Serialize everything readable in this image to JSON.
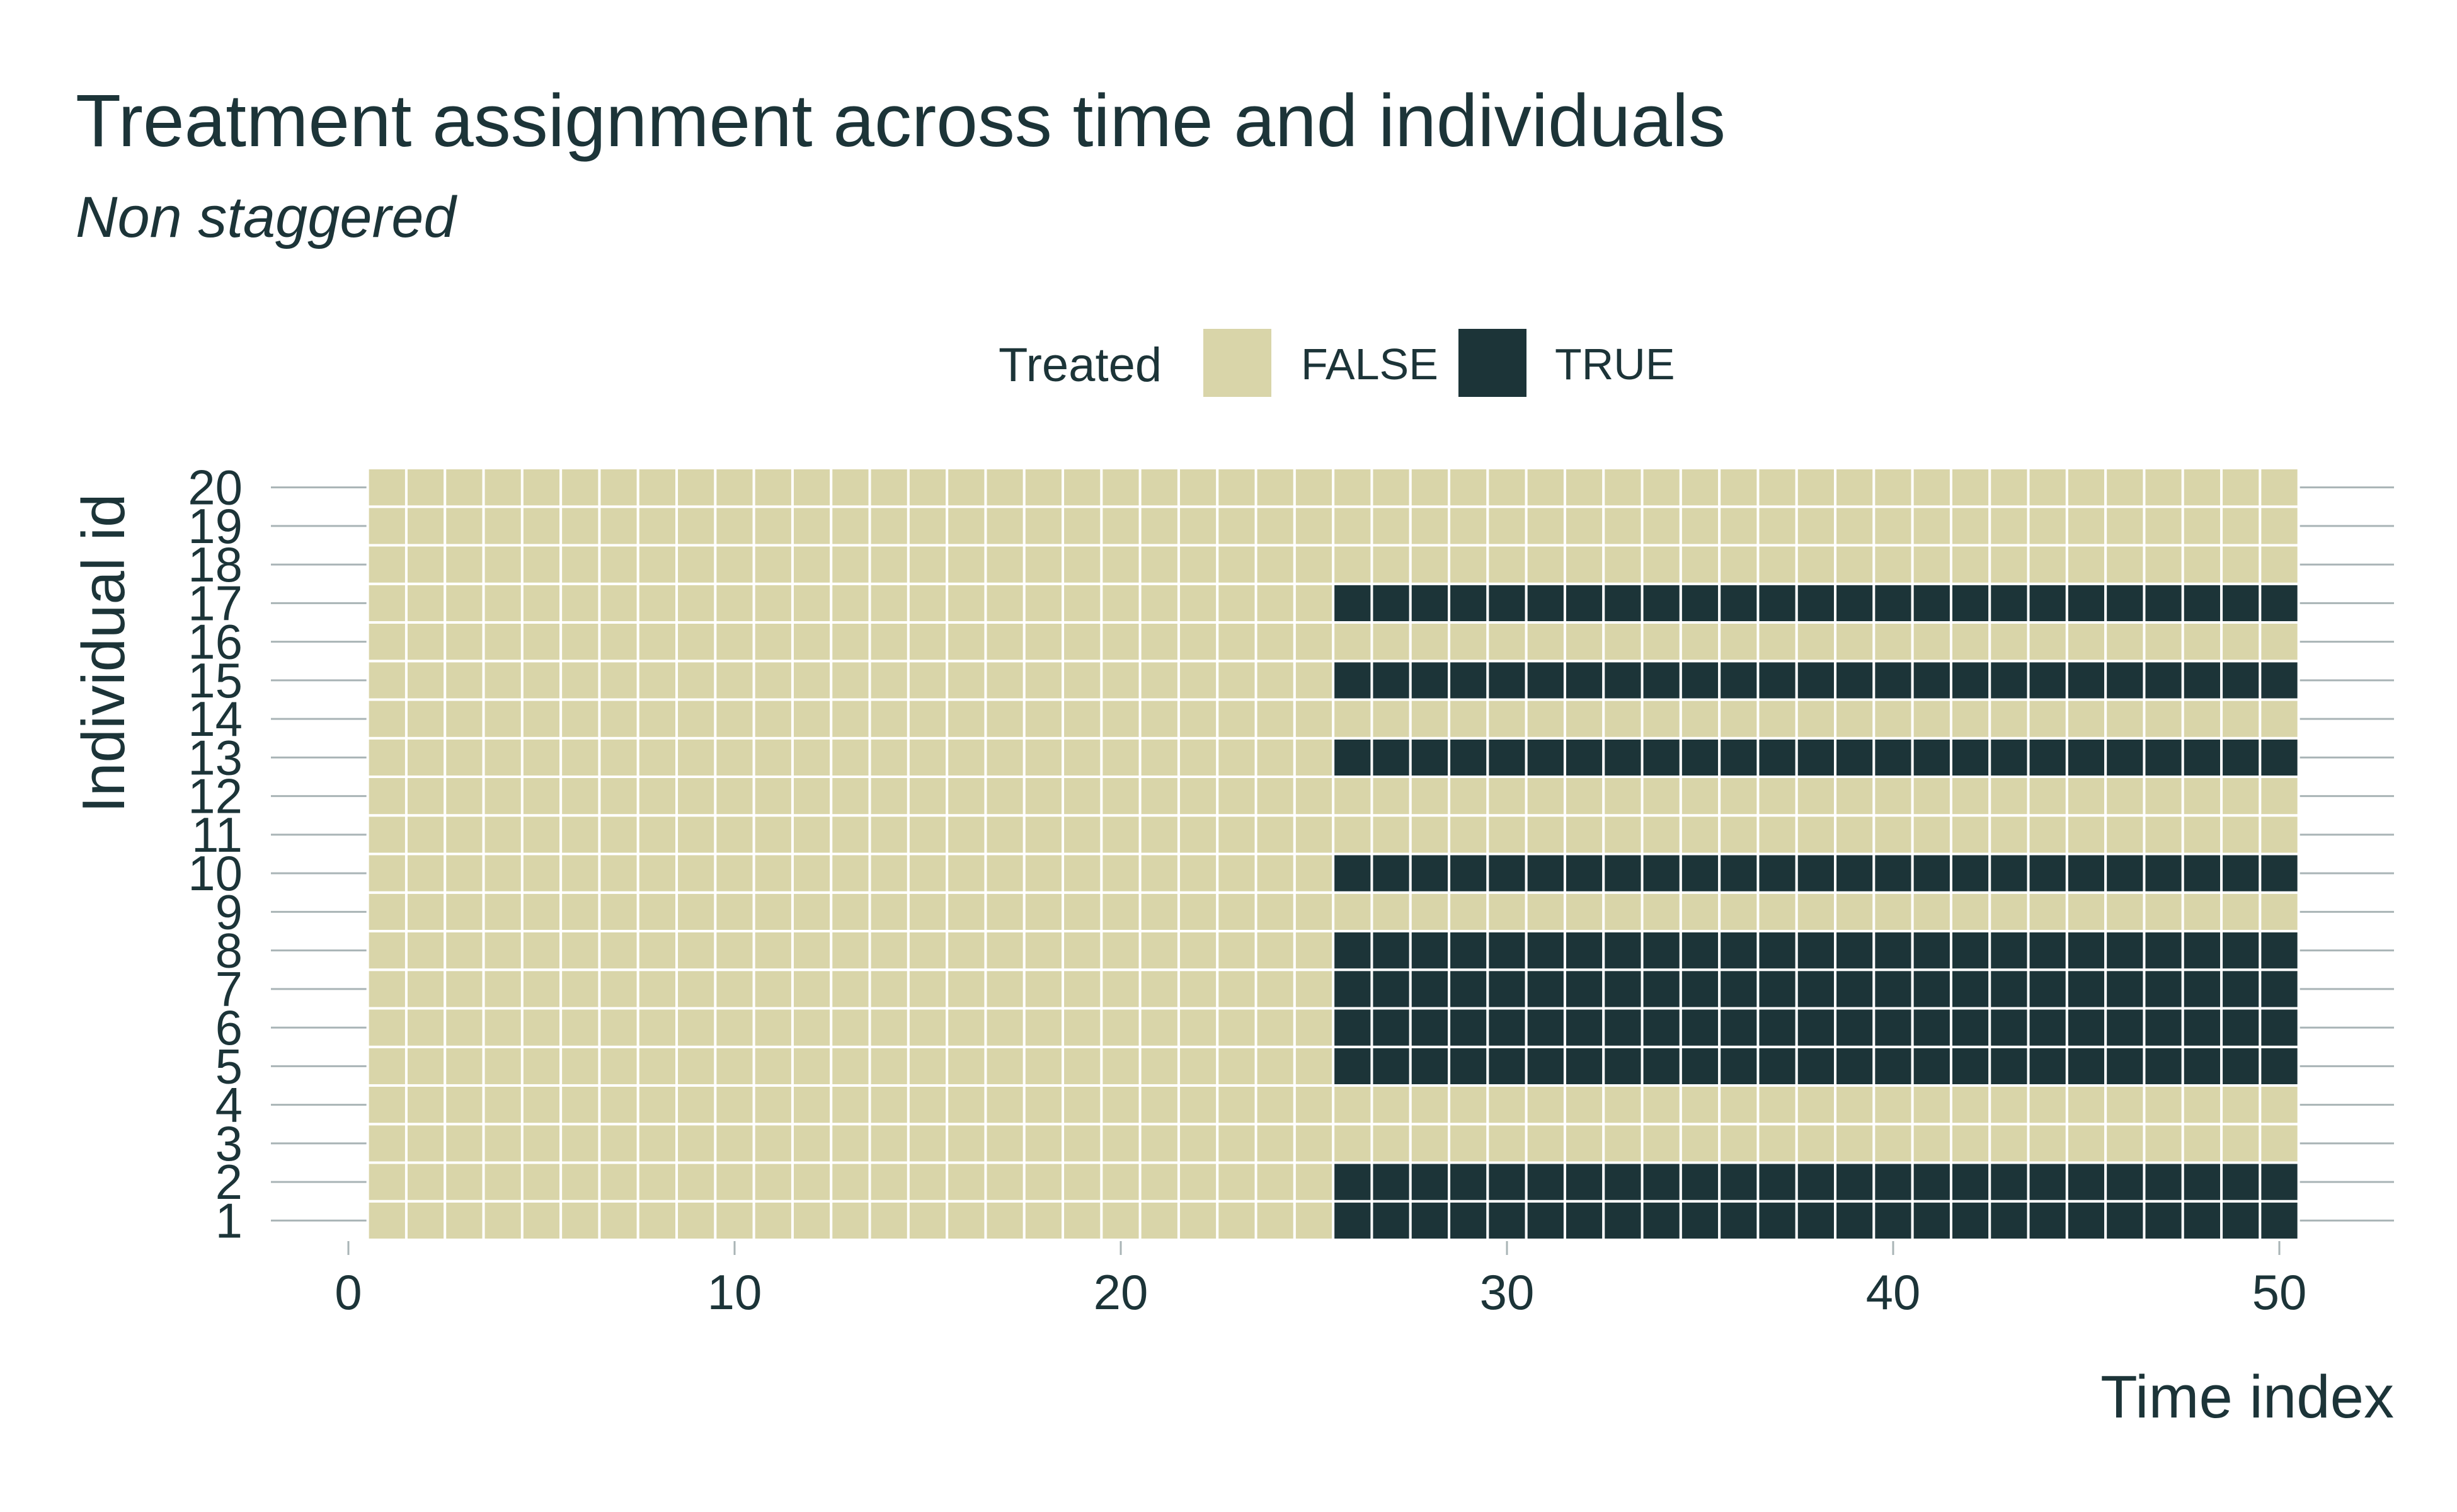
{
  "chart_data": {
    "type": "heatmap",
    "title": "Treatment assignment across time and individuals",
    "subtitle": "Non staggered",
    "xlabel": "Time index",
    "ylabel": "Individual id",
    "x_ticks": [
      0,
      10,
      20,
      30,
      40,
      50
    ],
    "x_range": [
      1,
      50
    ],
    "y_ids": [
      1,
      2,
      3,
      4,
      5,
      6,
      7,
      8,
      9,
      10,
      11,
      12,
      13,
      14,
      15,
      16,
      17,
      18,
      19,
      20
    ],
    "legend": {
      "title": "Treated",
      "position": "top",
      "items": [
        {
          "label": "FALSE",
          "color": "#d9d5a9"
        },
        {
          "label": "TRUE",
          "color": "#1c3438"
        }
      ]
    },
    "treatment_start_time": 26,
    "treated_ids": [
      1,
      2,
      5,
      6,
      7,
      8,
      10,
      13,
      15,
      17
    ],
    "grid": "horizontal",
    "colors": {
      "false": "#d9d5a9",
      "true": "#1c3438",
      "text": "#1c3438",
      "grid": "#a9b4b6",
      "cell_border": "#ffffff"
    }
  }
}
